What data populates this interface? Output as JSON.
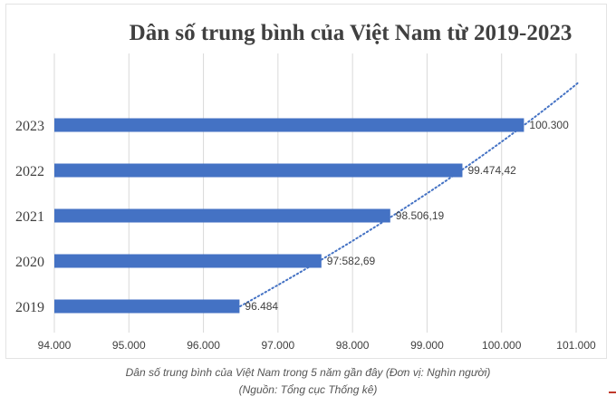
{
  "chart_data": {
    "type": "bar",
    "orientation": "horizontal",
    "title": "Dân số trung bình của Việt Nam từ 2019-2023",
    "categories": [
      "2019",
      "2020",
      "2021",
      "2022",
      "2023"
    ],
    "values": [
      96.484,
      97.58269,
      98.50619,
      99.47442,
      100.3
    ],
    "value_labels": [
      "96.484",
      "97:582,69",
      "98.506,19",
      "99.474,42",
      "100.300"
    ],
    "xlim": [
      94,
      101
    ],
    "x_ticks": [
      94,
      95,
      96,
      97,
      98,
      99,
      100,
      101
    ],
    "x_tick_labels": [
      "94.000",
      "95.000",
      "96.000",
      "97.000",
      "98.000",
      "99.000",
      "100.000",
      "101.000"
    ],
    "grid": true,
    "bar_color": "#4472c4",
    "trendline": {
      "style": "dotted",
      "type": "polynomial",
      "color": "#4472c4"
    },
    "xlabel": "",
    "ylabel": ""
  },
  "caption": {
    "line1": "Dân số trung bình của Việt Nam trong 5 năm gần đây (Đơn vị: Nghìn người)",
    "line2": "(Nguồn: Tổng cục Thống kê)"
  },
  "colors": {
    "grid": "#d9d9d9",
    "text": "#404040",
    "title": "#404040"
  }
}
